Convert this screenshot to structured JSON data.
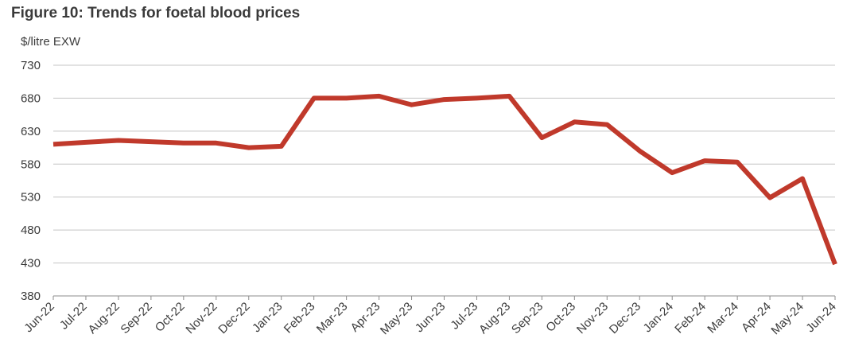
{
  "chart_data": {
    "type": "line",
    "title": "Figure 10: Trends for foetal blood prices",
    "ylabel": "$/litre EXW",
    "xlabel": "",
    "ylim": [
      380,
      730
    ],
    "yticks": [
      380,
      430,
      480,
      530,
      580,
      630,
      680,
      730
    ],
    "grid": true,
    "legend": "none",
    "categories": [
      "Jun-22",
      "Jul-22",
      "Aug-22",
      "Sep-22",
      "Oct-22",
      "Nov-22",
      "Dec-22",
      "Jan-23",
      "Feb-23",
      "Mar-23",
      "Apr-23",
      "May-23",
      "Jun-23",
      "Jul-23",
      "Aug-23",
      "Sep-23",
      "Oct-23",
      "Nov-23",
      "Dec-23",
      "Jan-24",
      "Feb-24",
      "Mar-24",
      "Apr-24",
      "May-24",
      "Jun-24"
    ],
    "series": [
      {
        "color": "#c0392b",
        "values": [
          610,
          613,
          616,
          614,
          612,
          612,
          605,
          607,
          680,
          680,
          683,
          670,
          678,
          680,
          683,
          620,
          644,
          640,
          600,
          567,
          585,
          583,
          529,
          558,
          428
        ]
      }
    ]
  }
}
